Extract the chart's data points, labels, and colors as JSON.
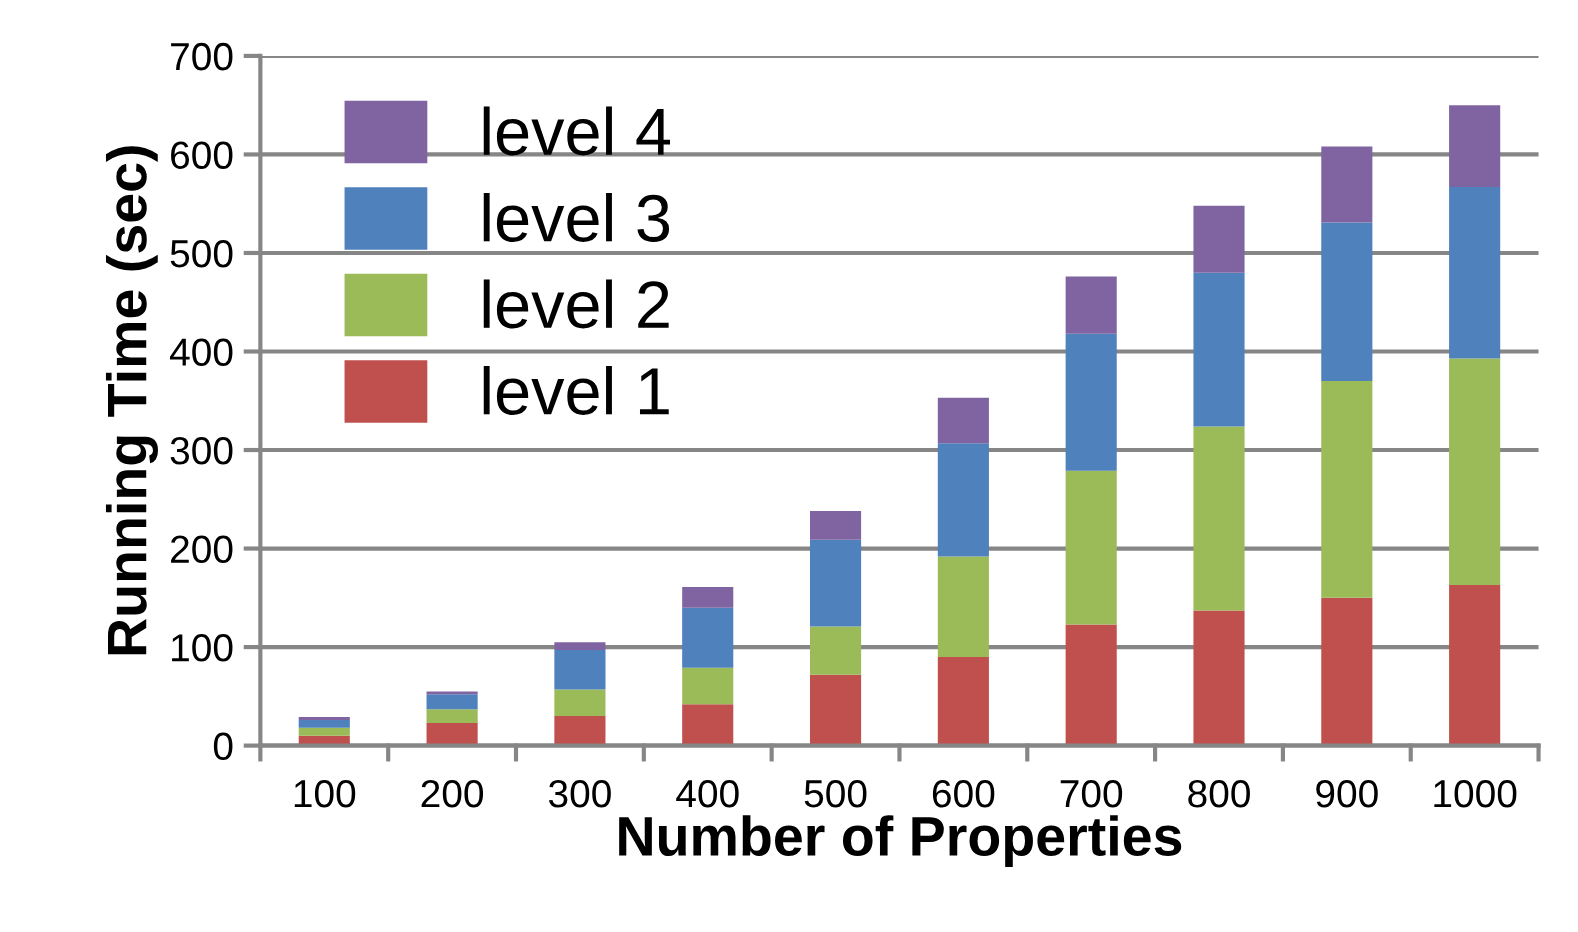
{
  "chart_data": {
    "type": "bar",
    "stacked": true,
    "xlabel": "Number of Properties",
    "ylabel": "Running Time (sec)",
    "categories": [
      "100",
      "200",
      "300",
      "400",
      "500",
      "600",
      "700",
      "800",
      "900",
      "1000"
    ],
    "series": [
      {
        "name": "level 1",
        "color": "#c0504d",
        "values": [
          10,
          23,
          30,
          42,
          72,
          90,
          123,
          137,
          150,
          163
        ]
      },
      {
        "name": "level 2",
        "color": "#9bbb59",
        "values": [
          8,
          14,
          27,
          37,
          49,
          102,
          156,
          187,
          220,
          230
        ]
      },
      {
        "name": "level 3",
        "color": "#4f81bd",
        "values": [
          8,
          15,
          40,
          61,
          88,
          115,
          139,
          156,
          161,
          174
        ]
      },
      {
        "name": "level 4",
        "color": "#8064a2",
        "values": [
          3,
          3,
          8,
          21,
          29,
          46,
          58,
          68,
          77,
          83
        ]
      }
    ],
    "ylim": [
      0,
      700
    ],
    "yticks": [
      0,
      100,
      200,
      300,
      400,
      500,
      600,
      700
    ],
    "grid": "y",
    "legend": "top left"
  }
}
